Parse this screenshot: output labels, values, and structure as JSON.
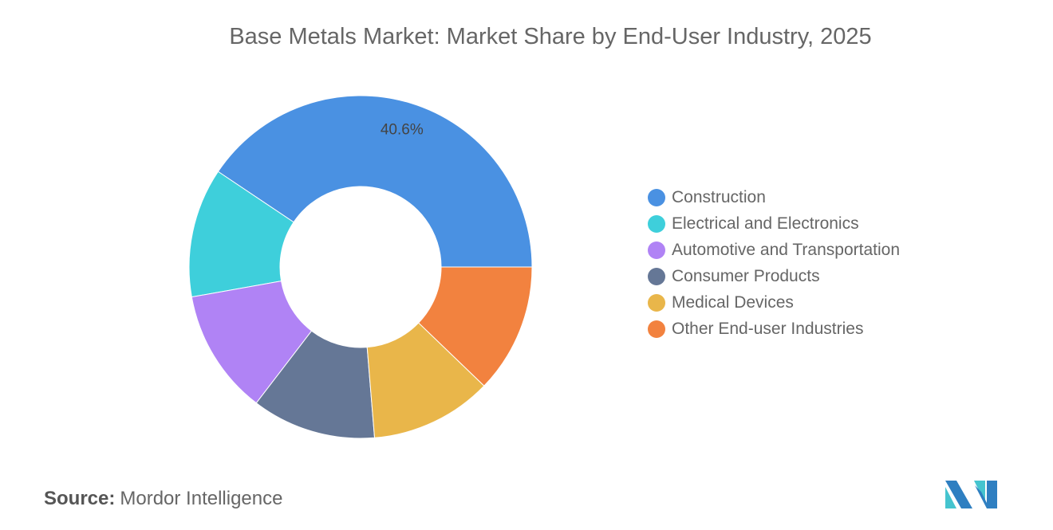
{
  "chart_data": {
    "type": "pie",
    "title": "Base Metals Market: Market Share by End-User Industry, 2025",
    "categories": [
      "Construction",
      "Electrical and Electronics",
      "Automotive and Transportation",
      "Consumer Products",
      "Medical Devices",
      "Other End-user Industries"
    ],
    "values": [
      40.6,
      12.2,
      11.8,
      11.7,
      11.5,
      12.2
    ],
    "data_labels": [
      "40.6%",
      "",
      "",
      "",
      "",
      ""
    ],
    "colors": [
      "#4a91e2",
      "#3ecfdb",
      "#b083f5",
      "#657796",
      "#e9b64a",
      "#f2823f"
    ],
    "donut": true,
    "legend_position": "right"
  },
  "source": {
    "label": "Source:",
    "text": "Mordor Intelligence"
  },
  "logo": {
    "colors": [
      "#2f7fc1",
      "#45c4cf"
    ]
  }
}
